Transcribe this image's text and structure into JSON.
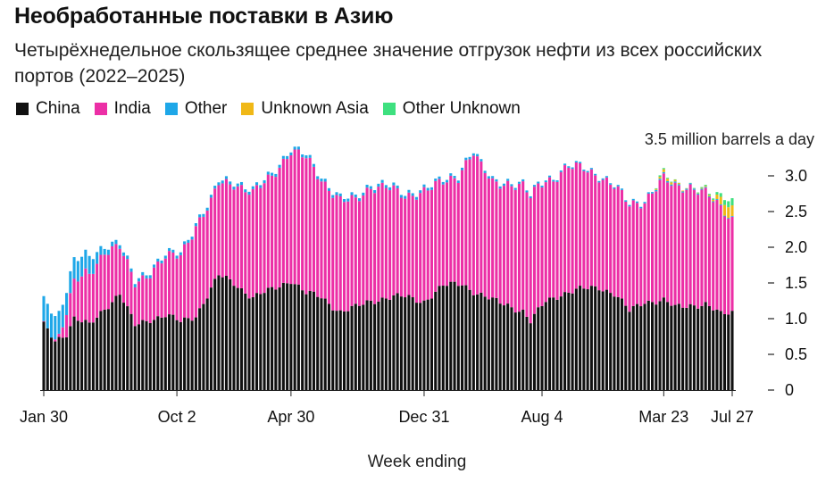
{
  "title": "Необработанные поставки в Азию",
  "subtitle": "Четырёхнедельное скользящее среднее значение отгрузок нефти из всех российских портов (2022–2025)",
  "legend": [
    {
      "name": "China",
      "color": "#111111"
    },
    {
      "name": "India",
      "color": "#ec2fa6"
    },
    {
      "name": "Other",
      "color": "#1ea7e8"
    },
    {
      "name": "Unknown Asia",
      "color": "#f0b817"
    },
    {
      "name": "Other Unknown",
      "color": "#3ee07f"
    }
  ],
  "chart_data": {
    "type": "bar",
    "stacked": true,
    "title": "Необработанные поставки в Азию",
    "ylabel": "3.5 million barrels a day",
    "xlabel": "Week ending",
    "ylim": [
      0,
      3.5
    ],
    "yticks": [
      "0",
      "0.5",
      "1.0",
      "1.5",
      "2.0",
      "2.5",
      "3.0"
    ],
    "xticks": [
      {
        "label": "Jan 30",
        "index": 0
      },
      {
        "label": "Oct 2",
        "index": 35
      },
      {
        "label": "Apr 30",
        "index": 65
      },
      {
        "label": "Dec 31",
        "index": 100
      },
      {
        "label": "Aug 4",
        "index": 131
      },
      {
        "label": "Mar 23",
        "index": 163
      },
      {
        "label": "Jul 27",
        "index": 181
      }
    ],
    "anchors": {
      "China": [
        [
          0,
          0.9
        ],
        [
          3,
          0.7
        ],
        [
          6,
          0.8
        ],
        [
          8,
          1.0
        ],
        [
          12,
          0.9
        ],
        [
          16,
          1.15
        ],
        [
          20,
          1.35
        ],
        [
          24,
          0.9
        ],
        [
          28,
          1.0
        ],
        [
          32,
          1.05
        ],
        [
          36,
          0.95
        ],
        [
          40,
          1.05
        ],
        [
          46,
          1.6
        ],
        [
          50,
          1.5
        ],
        [
          55,
          1.3
        ],
        [
          60,
          1.4
        ],
        [
          65,
          1.55
        ],
        [
          69,
          1.35
        ],
        [
          73,
          1.3
        ],
        [
          78,
          1.1
        ],
        [
          82,
          1.15
        ],
        [
          86,
          1.25
        ],
        [
          90,
          1.3
        ],
        [
          95,
          1.3
        ],
        [
          100,
          1.25
        ],
        [
          105,
          1.45
        ],
        [
          110,
          1.5
        ],
        [
          114,
          1.35
        ],
        [
          118,
          1.25
        ],
        [
          122,
          1.2
        ],
        [
          126,
          1.1
        ],
        [
          128,
          0.95
        ],
        [
          132,
          1.25
        ],
        [
          136,
          1.35
        ],
        [
          141,
          1.4
        ],
        [
          146,
          1.45
        ],
        [
          150,
          1.35
        ],
        [
          154,
          1.1
        ],
        [
          158,
          1.25
        ],
        [
          163,
          1.25
        ],
        [
          166,
          1.15
        ],
        [
          170,
          1.2
        ],
        [
          174,
          1.2
        ],
        [
          178,
          1.05
        ],
        [
          181,
          1.1
        ]
      ],
      "India": [
        [
          0,
          0.0
        ],
        [
          4,
          0.03
        ],
        [
          6,
          0.3
        ],
        [
          8,
          0.5
        ],
        [
          11,
          0.7
        ],
        [
          16,
          0.8
        ],
        [
          20,
          0.65
        ],
        [
          24,
          0.6
        ],
        [
          28,
          0.65
        ],
        [
          32,
          0.8
        ],
        [
          36,
          0.95
        ],
        [
          40,
          1.25
        ],
        [
          44,
          1.2
        ],
        [
          46,
          1.3
        ],
        [
          50,
          1.4
        ],
        [
          55,
          1.45
        ],
        [
          60,
          1.6
        ],
        [
          65,
          1.8
        ],
        [
          69,
          1.9
        ],
        [
          73,
          1.65
        ],
        [
          78,
          1.55
        ],
        [
          82,
          1.5
        ],
        [
          86,
          1.6
        ],
        [
          90,
          1.55
        ],
        [
          95,
          1.4
        ],
        [
          100,
          1.55
        ],
        [
          105,
          1.45
        ],
        [
          109,
          1.5
        ],
        [
          113,
          1.95
        ],
        [
          115,
          1.8
        ],
        [
          118,
          1.65
        ],
        [
          122,
          1.7
        ],
        [
          126,
          1.75
        ],
        [
          130,
          1.75
        ],
        [
          134,
          1.65
        ],
        [
          138,
          1.75
        ],
        [
          142,
          1.7
        ],
        [
          146,
          1.55
        ],
        [
          150,
          1.5
        ],
        [
          154,
          1.5
        ],
        [
          158,
          1.4
        ],
        [
          163,
          1.7
        ],
        [
          166,
          1.7
        ],
        [
          170,
          1.65
        ],
        [
          174,
          1.55
        ],
        [
          178,
          1.5
        ],
        [
          181,
          1.3
        ]
      ],
      "Other": [
        [
          0,
          0.35
        ],
        [
          4,
          0.32
        ],
        [
          8,
          0.3
        ],
        [
          12,
          0.25
        ],
        [
          16,
          0.08
        ],
        [
          20,
          0.05
        ],
        [
          30,
          0.04
        ],
        [
          40,
          0.04
        ],
        [
          60,
          0.04
        ],
        [
          70,
          0.04
        ],
        [
          90,
          0.04
        ],
        [
          120,
          0.03
        ],
        [
          140,
          0.02
        ],
        [
          160,
          0.02
        ],
        [
          181,
          0.01
        ]
      ],
      "Unknown Asia": [
        [
          0,
          0.0
        ],
        [
          160,
          0.0
        ],
        [
          163,
          0.04
        ],
        [
          170,
          0.0
        ],
        [
          176,
          0.02
        ],
        [
          179,
          0.15
        ],
        [
          181,
          0.15
        ]
      ],
      "Other Unknown": [
        [
          0,
          0.0
        ],
        [
          160,
          0.0
        ],
        [
          162,
          0.02
        ],
        [
          168,
          0.0
        ],
        [
          176,
          0.02
        ],
        [
          181,
          0.1
        ]
      ]
    },
    "weeks": 182,
    "grid": false,
    "legend_position": "top-left"
  }
}
